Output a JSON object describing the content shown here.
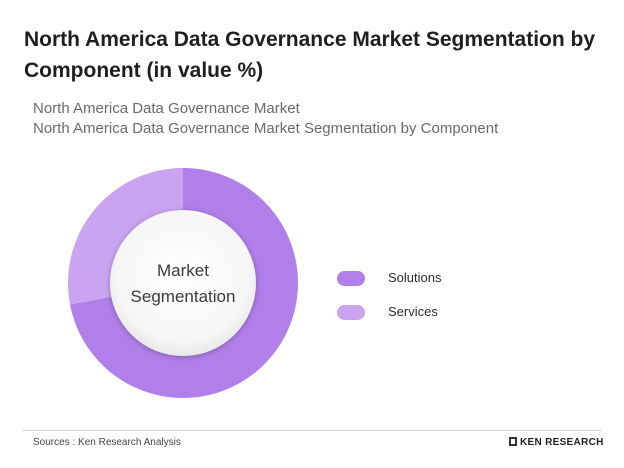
{
  "header": {
    "title": "North America Data Governance Market Segmentation by Component (in value %)",
    "subtitle_1": "North America Data Governance Market",
    "subtitle_2": "North America Data Governance Market Segmentation by Component"
  },
  "chart_data": {
    "type": "pie",
    "style": "donut",
    "center_label": [
      "Market",
      "Segmentation"
    ],
    "categories": [
      "Solutions",
      "Services"
    ],
    "values": [
      72,
      28
    ],
    "colors": [
      "#b07fea",
      "#caa4f1"
    ],
    "legend": "right",
    "data_labels": false
  },
  "footer": {
    "source": "Sources : Ken Research Analysis",
    "brand": "KEN RESEARCH"
  }
}
